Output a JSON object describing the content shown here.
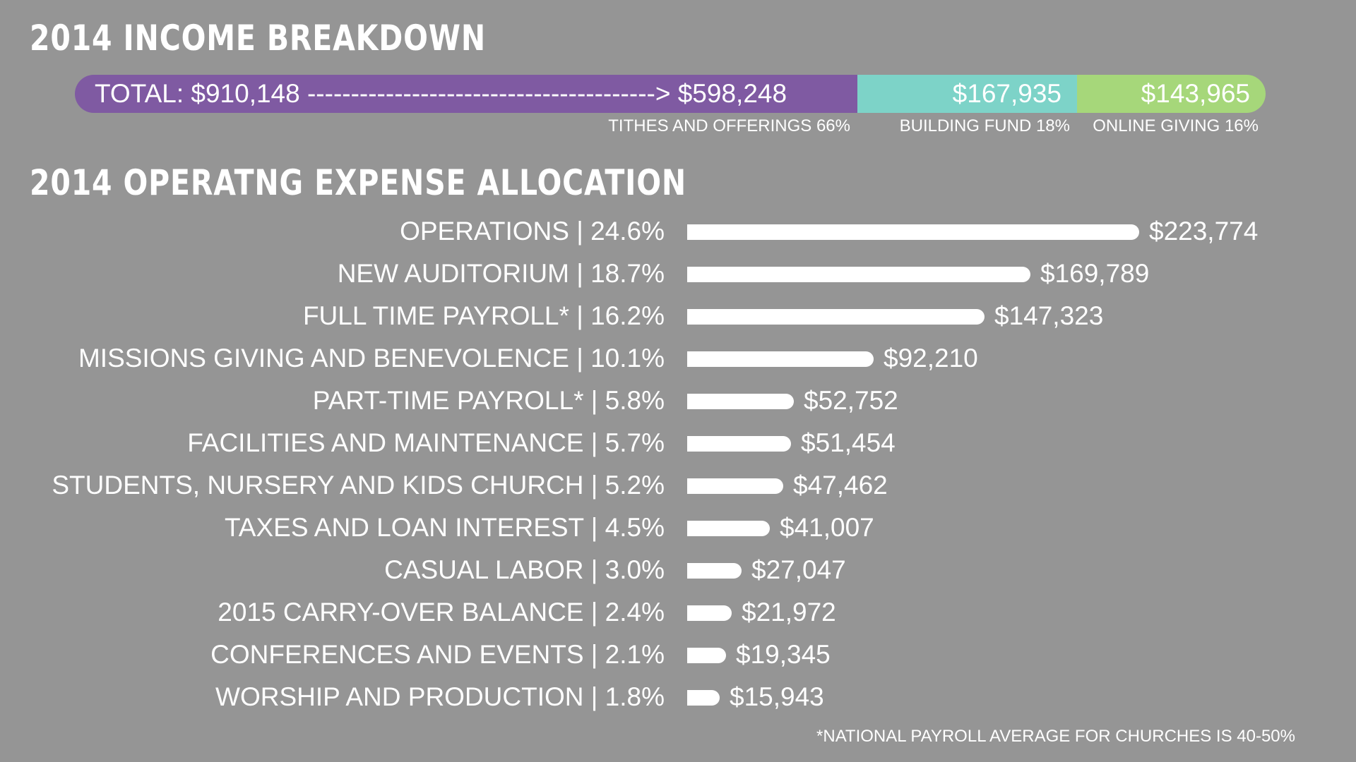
{
  "income": {
    "title": "2014 INCOME BREAKDOWN",
    "total_text": "TOTAL: $910,148 ----------------------------------------> $598,248",
    "segments": [
      {
        "label": "TITHES AND OFFERINGS 66%",
        "amount": "$598,248",
        "value": 598248,
        "color": "#7f5aa2"
      },
      {
        "label": "BUILDING FUND 18%",
        "amount": "$167,935",
        "value": 167935,
        "color": "#7dd3c8"
      },
      {
        "label": "ONLINE GIVING 16%",
        "amount": "$143,965",
        "value": 143965,
        "color": "#a6d77a"
      }
    ]
  },
  "expenses": {
    "title": "2014 OPERATNG EXPENSE ALLOCATION",
    "footnote": "*NATIONAL PAYROLL AVERAGE FOR CHURCHES IS 40-50%"
  },
  "chart_data": [
    {
      "type": "bar",
      "title": "2014 INCOME BREAKDOWN",
      "categories": [
        "TITHES AND OFFERINGS",
        "BUILDING FUND",
        "ONLINE GIVING"
      ],
      "values": [
        598248,
        167935,
        143965
      ],
      "percent": [
        66,
        18,
        16
      ],
      "total": 910148
    },
    {
      "type": "bar",
      "title": "2014 OPERATNG EXPENSE ALLOCATION",
      "rows": [
        {
          "label": "OPERATIONS | 24.6%",
          "amount": "$223,774",
          "value": 223774
        },
        {
          "label": "NEW AUDITORIUM | 18.7%",
          "amount": "$169,789",
          "value": 169789
        },
        {
          "label": "FULL TIME PAYROLL* | 16.2%",
          "amount": "$147,323",
          "value": 147323
        },
        {
          "label": "MISSIONS GIVING AND BENEVOLENCE | 10.1%",
          "amount": "$92,210",
          "value": 92210
        },
        {
          "label": "PART-TIME PAYROLL* | 5.8%",
          "amount": "$52,752",
          "value": 52752
        },
        {
          "label": "FACILITIES AND MAINTENANCE | 5.7%",
          "amount": "$51,454",
          "value": 51454
        },
        {
          "label": "STUDENTS, NURSERY AND KIDS CHURCH | 5.2%",
          "amount": "$47,462",
          "value": 47462
        },
        {
          "label": "TAXES AND LOAN INTEREST | 4.5%",
          "amount": "$41,007",
          "value": 41007
        },
        {
          "label": "CASUAL LABOR | 3.0%",
          "amount": "$27,047",
          "value": 27047
        },
        {
          "label": "2015 CARRY-OVER BALANCE | 2.4%",
          "amount": "$21,972",
          "value": 21972
        },
        {
          "label": "CONFERENCES AND EVENTS | 2.1%",
          "amount": "$19,345",
          "value": 19345
        },
        {
          "label": "WORSHIP AND PRODUCTION | 1.8%",
          "amount": "$15,943",
          "value": 15943
        }
      ]
    }
  ]
}
